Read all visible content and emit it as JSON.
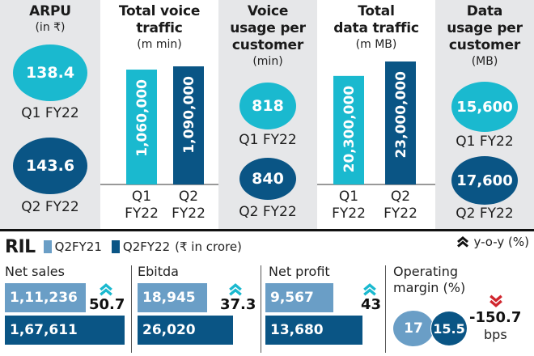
{
  "colors": {
    "q1_fill": "#1ab9cf",
    "q2_fill": "#0a5585",
    "prior_year_bar": "#6a9ec6",
    "current_year_bar": "#0a5585",
    "up_arrow": "#1ab9cf",
    "down_arrow": "#d0262e",
    "panel_grey": "#e6e7e9"
  },
  "top_metrics": {
    "arpu": {
      "title": "ARPU",
      "unit": "(in ₹)",
      "q1": {
        "value": "138.4",
        "label": "Q1 FY22"
      },
      "q2": {
        "value": "143.6",
        "label": "Q2 FY22"
      }
    },
    "voice_usage": {
      "title_l1": "Voice",
      "title_l2": "usage per",
      "title_l3": "customer",
      "unit": "(min)",
      "q1": {
        "value": "818",
        "label": "Q1 FY22"
      },
      "q2": {
        "value": "840",
        "label": "Q2 FY22"
      }
    },
    "data_usage": {
      "title_l1": "Data",
      "title_l2": "usage per",
      "title_l3": "customer",
      "unit": "(MB)",
      "q1": {
        "value": "15,600",
        "label": "Q1 FY22"
      },
      "q2": {
        "value": "17,600",
        "label": "Q2 FY22"
      }
    }
  },
  "chart_data": [
    {
      "type": "bar",
      "title": "Total voice traffic",
      "title_l1": "Total voice",
      "title_l2": "traffic",
      "unit": "(m min)",
      "categories": [
        "Q1 FY22",
        "Q2 FY22"
      ],
      "cat_l1": [
        "Q1",
        "Q2"
      ],
      "cat_l2": [
        "FY22",
        "FY22"
      ],
      "values": [
        1060000,
        1090000
      ],
      "value_labels": [
        "1,060,000",
        "1,090,000"
      ],
      "ylim": [
        0,
        1090000
      ]
    },
    {
      "type": "bar",
      "title": "Total data traffic",
      "title_l1": "Total",
      "title_l2": "data traffic",
      "unit": "(m MB)",
      "categories": [
        "Q1 FY22",
        "Q2 FY22"
      ],
      "cat_l1": [
        "Q1",
        "Q2"
      ],
      "cat_l2": [
        "FY22",
        "FY22"
      ],
      "values": [
        20300000,
        23000000
      ],
      "value_labels": [
        "20,300,000",
        "23,000,000"
      ],
      "ylim": [
        0,
        23000000
      ]
    },
    {
      "type": "bar",
      "title": "RIL",
      "legend": [
        "Q2FY21",
        "Q2FY22"
      ],
      "unit_note": "(₹ in crore)",
      "categories": [
        "Net sales",
        "Ebitda",
        "Net profit"
      ],
      "series": [
        {
          "name": "Q2FY21",
          "values": [
            111236,
            18945,
            9567
          ],
          "labels": [
            "1,11,236",
            "18,945",
            "9,567"
          ]
        },
        {
          "name": "Q2FY22",
          "values": [
            167611,
            26020,
            13680
          ],
          "labels": [
            "1,67,611",
            "26,020",
            "13,680"
          ]
        }
      ],
      "yoy_change_pct": [
        "50.7",
        "37.3",
        "43"
      ]
    }
  ],
  "ril": {
    "title": "RIL",
    "legend_prev": "Q2FY21",
    "legend_curr": "Q2FY22",
    "unit_note": "(₹ in crore)",
    "yoy_label": "y-o-y (%)",
    "op_margin": {
      "label_l1": "Operating",
      "label_l2": "margin (%)",
      "prev": "17",
      "curr": "15.5",
      "change": "-150.7",
      "change_unit": "bps"
    }
  }
}
